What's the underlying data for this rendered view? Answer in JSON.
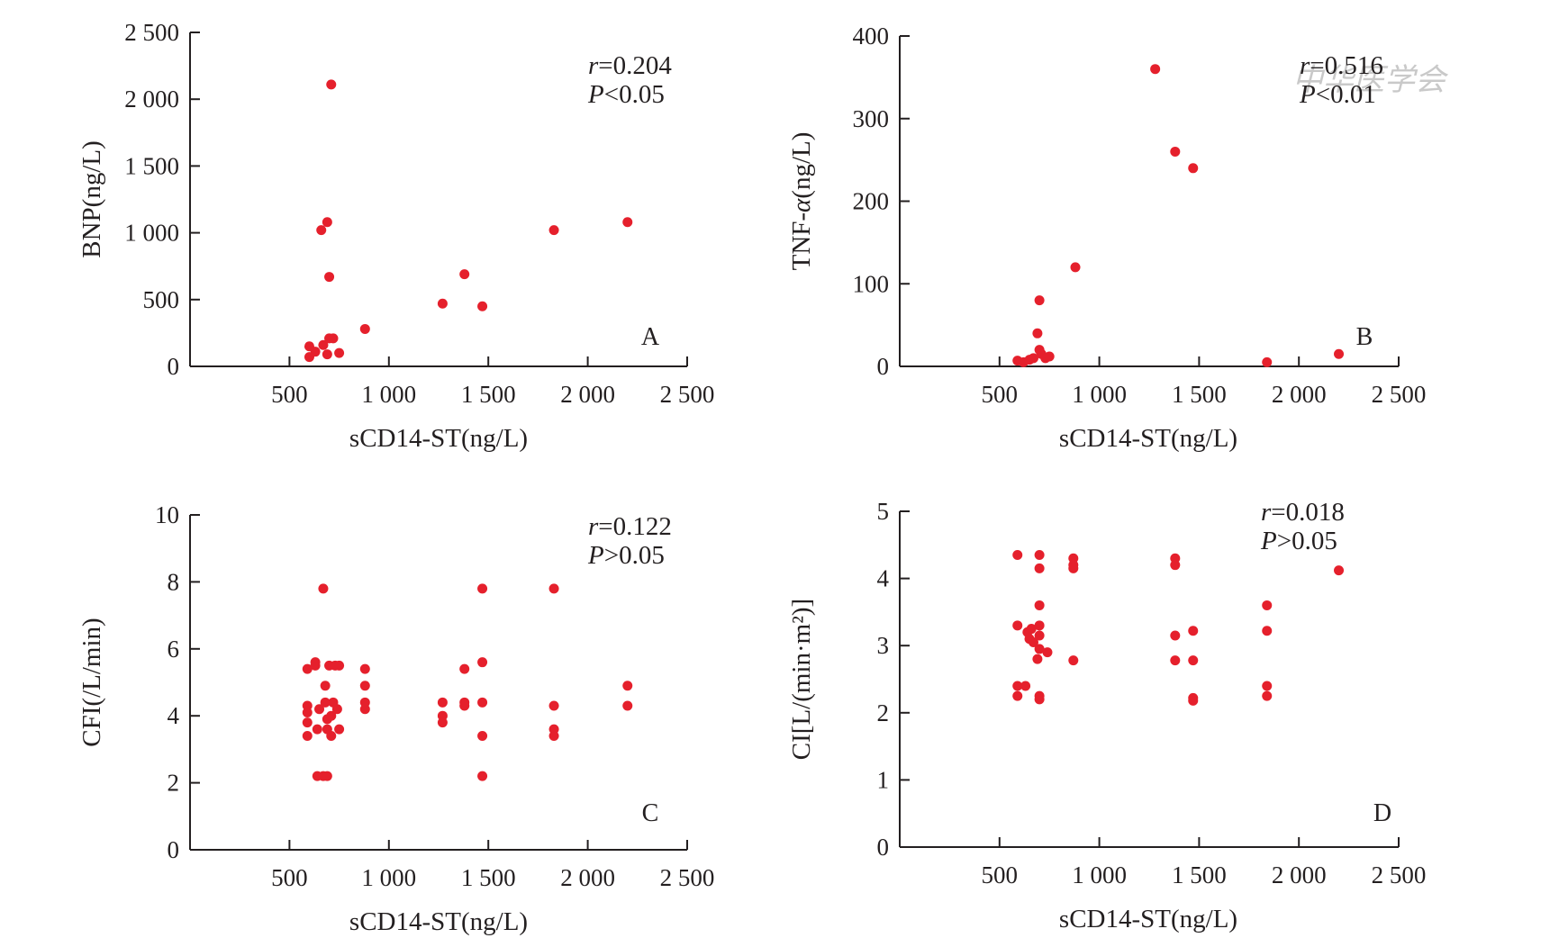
{
  "watermark": "中华医学会",
  "colors": {
    "point": "#e5202c",
    "axis": "#231f20",
    "text": "#231f20"
  },
  "chart_data": [
    {
      "type": "scatter",
      "panel": "A",
      "xlabel": "sCD14-ST(ng/L)",
      "ylabel": "BNP(ng/L)",
      "xlim": [
        0,
        2500
      ],
      "ylim": [
        0,
        2500
      ],
      "xticks": [
        500,
        1000,
        1500,
        2000,
        2500
      ],
      "xtick_labels": [
        "500",
        "1 000",
        "1 500",
        "2 000",
        "2 500"
      ],
      "yticks": [
        0,
        500,
        1000,
        1500,
        2000,
        2500
      ],
      "ytick_labels": [
        "0",
        "500",
        "1 000",
        "1 500",
        "2 000",
        "2 500"
      ],
      "r_label": "r",
      "r_value": "=0.204",
      "p_label": "P",
      "p_value": "<0.05",
      "points": [
        [
          600,
          150
        ],
        [
          600,
          70
        ],
        [
          630,
          110
        ],
        [
          670,
          160
        ],
        [
          690,
          90
        ],
        [
          700,
          210
        ],
        [
          720,
          210
        ],
        [
          750,
          100
        ],
        [
          660,
          1020
        ],
        [
          690,
          1080
        ],
        [
          700,
          670
        ],
        [
          710,
          2110
        ],
        [
          880,
          280
        ],
        [
          1270,
          470
        ],
        [
          1380,
          690
        ],
        [
          1470,
          450
        ],
        [
          1830,
          1020
        ],
        [
          2200,
          1080
        ]
      ]
    },
    {
      "type": "scatter",
      "panel": "B",
      "xlabel": "sCD14-ST(ng/L)",
      "ylabel": "TNF-α(ng/L)",
      "xlim": [
        0,
        2500
      ],
      "ylim": [
        0,
        400
      ],
      "xticks": [
        500,
        1000,
        1500,
        2000,
        2500
      ],
      "xtick_labels": [
        "500",
        "1 000",
        "1 500",
        "2 000",
        "2 500"
      ],
      "yticks": [
        0,
        100,
        200,
        300,
        400
      ],
      "ytick_labels": [
        "0",
        "100",
        "200",
        "300",
        "400"
      ],
      "r_label": "r",
      "r_value": "=0.516",
      "p_label": "P",
      "p_value": "<0.01",
      "points": [
        [
          590,
          7
        ],
        [
          620,
          5
        ],
        [
          650,
          8
        ],
        [
          670,
          10
        ],
        [
          690,
          40
        ],
        [
          700,
          80
        ],
        [
          700,
          20
        ],
        [
          710,
          15
        ],
        [
          730,
          10
        ],
        [
          750,
          12
        ],
        [
          880,
          120
        ],
        [
          1280,
          360
        ],
        [
          1380,
          260
        ],
        [
          1470,
          240
        ],
        [
          1840,
          5
        ],
        [
          2200,
          15
        ]
      ]
    },
    {
      "type": "scatter",
      "panel": "C",
      "xlabel": "sCD14-ST(ng/L)",
      "ylabel": "CFI(/L/min)",
      "xlim": [
        0,
        2500
      ],
      "ylim": [
        0,
        10
      ],
      "xticks": [
        500,
        1000,
        1500,
        2000,
        2500
      ],
      "xtick_labels": [
        "500",
        "1 000",
        "1 500",
        "2 000",
        "2 500"
      ],
      "yticks": [
        0,
        2,
        4,
        6,
        8,
        10
      ],
      "ytick_labels": [
        "0",
        "2",
        "4",
        "6",
        "8",
        "10"
      ],
      "r_label": "r",
      "r_value": "=0.122",
      "p_label": "P",
      "p_value": ">0.05",
      "points": [
        [
          590,
          5.4
        ],
        [
          590,
          4.3
        ],
        [
          590,
          4.1
        ],
        [
          590,
          3.8
        ],
        [
          590,
          3.4
        ],
        [
          630,
          5.6
        ],
        [
          630,
          5.5
        ],
        [
          640,
          3.6
        ],
        [
          650,
          4.2
        ],
        [
          640,
          2.2
        ],
        [
          670,
          2.2
        ],
        [
          690,
          2.2
        ],
        [
          670,
          7.8
        ],
        [
          680,
          4.9
        ],
        [
          680,
          4.4
        ],
        [
          690,
          3.9
        ],
        [
          690,
          3.6
        ],
        [
          700,
          5.5
        ],
        [
          710,
          4.0
        ],
        [
          710,
          3.4
        ],
        [
          720,
          4.4
        ],
        [
          730,
          5.5
        ],
        [
          740,
          4.2
        ],
        [
          750,
          5.5
        ],
        [
          750,
          3.6
        ],
        [
          880,
          5.4
        ],
        [
          880,
          4.9
        ],
        [
          880,
          4.4
        ],
        [
          880,
          4.2
        ],
        [
          1270,
          4.4
        ],
        [
          1270,
          4.0
        ],
        [
          1270,
          3.8
        ],
        [
          1380,
          5.4
        ],
        [
          1380,
          4.4
        ],
        [
          1380,
          4.3
        ],
        [
          1470,
          7.8
        ],
        [
          1470,
          5.6
        ],
        [
          1470,
          4.4
        ],
        [
          1470,
          3.4
        ],
        [
          1470,
          2.2
        ],
        [
          1830,
          7.8
        ],
        [
          1830,
          4.3
        ],
        [
          1830,
          3.6
        ],
        [
          1830,
          3.4
        ],
        [
          2200,
          4.9
        ],
        [
          2200,
          4.3
        ]
      ]
    },
    {
      "type": "scatter",
      "panel": "D",
      "xlabel": "sCD14-ST(ng/L)",
      "ylabel": "CI[L/(min·m²)]",
      "xlim": [
        0,
        2500
      ],
      "ylim": [
        0,
        5
      ],
      "xticks": [
        500,
        1000,
        1500,
        2000,
        2500
      ],
      "xtick_labels": [
        "500",
        "1 000",
        "1 500",
        "2 000",
        "2 500"
      ],
      "yticks": [
        0,
        1,
        2,
        3,
        4,
        5
      ],
      "ytick_labels": [
        "0",
        "1",
        "2",
        "3",
        "4",
        "5"
      ],
      "r_label": "r",
      "r_value": "=0.018",
      "p_label": "P",
      "p_value": ">0.05",
      "points": [
        [
          590,
          4.35
        ],
        [
          590,
          3.3
        ],
        [
          590,
          2.4
        ],
        [
          590,
          2.25
        ],
        [
          630,
          2.4
        ],
        [
          640,
          3.2
        ],
        [
          650,
          3.1
        ],
        [
          660,
          3.25
        ],
        [
          670,
          3.05
        ],
        [
          690,
          2.8
        ],
        [
          700,
          4.35
        ],
        [
          700,
          4.15
        ],
        [
          700,
          3.6
        ],
        [
          700,
          3.3
        ],
        [
          700,
          3.15
        ],
        [
          700,
          2.95
        ],
        [
          700,
          2.25
        ],
        [
          700,
          2.2
        ],
        [
          740,
          2.9
        ],
        [
          870,
          4.3
        ],
        [
          870,
          4.2
        ],
        [
          870,
          4.15
        ],
        [
          870,
          2.78
        ],
        [
          1380,
          4.3
        ],
        [
          1380,
          4.2
        ],
        [
          1380,
          3.15
        ],
        [
          1380,
          2.78
        ],
        [
          1470,
          3.22
        ],
        [
          1470,
          2.78
        ],
        [
          1470,
          2.22
        ],
        [
          1470,
          2.18
        ],
        [
          1840,
          3.6
        ],
        [
          1840,
          3.22
        ],
        [
          1840,
          2.4
        ],
        [
          1840,
          2.25
        ],
        [
          2200,
          4.12
        ]
      ]
    }
  ]
}
